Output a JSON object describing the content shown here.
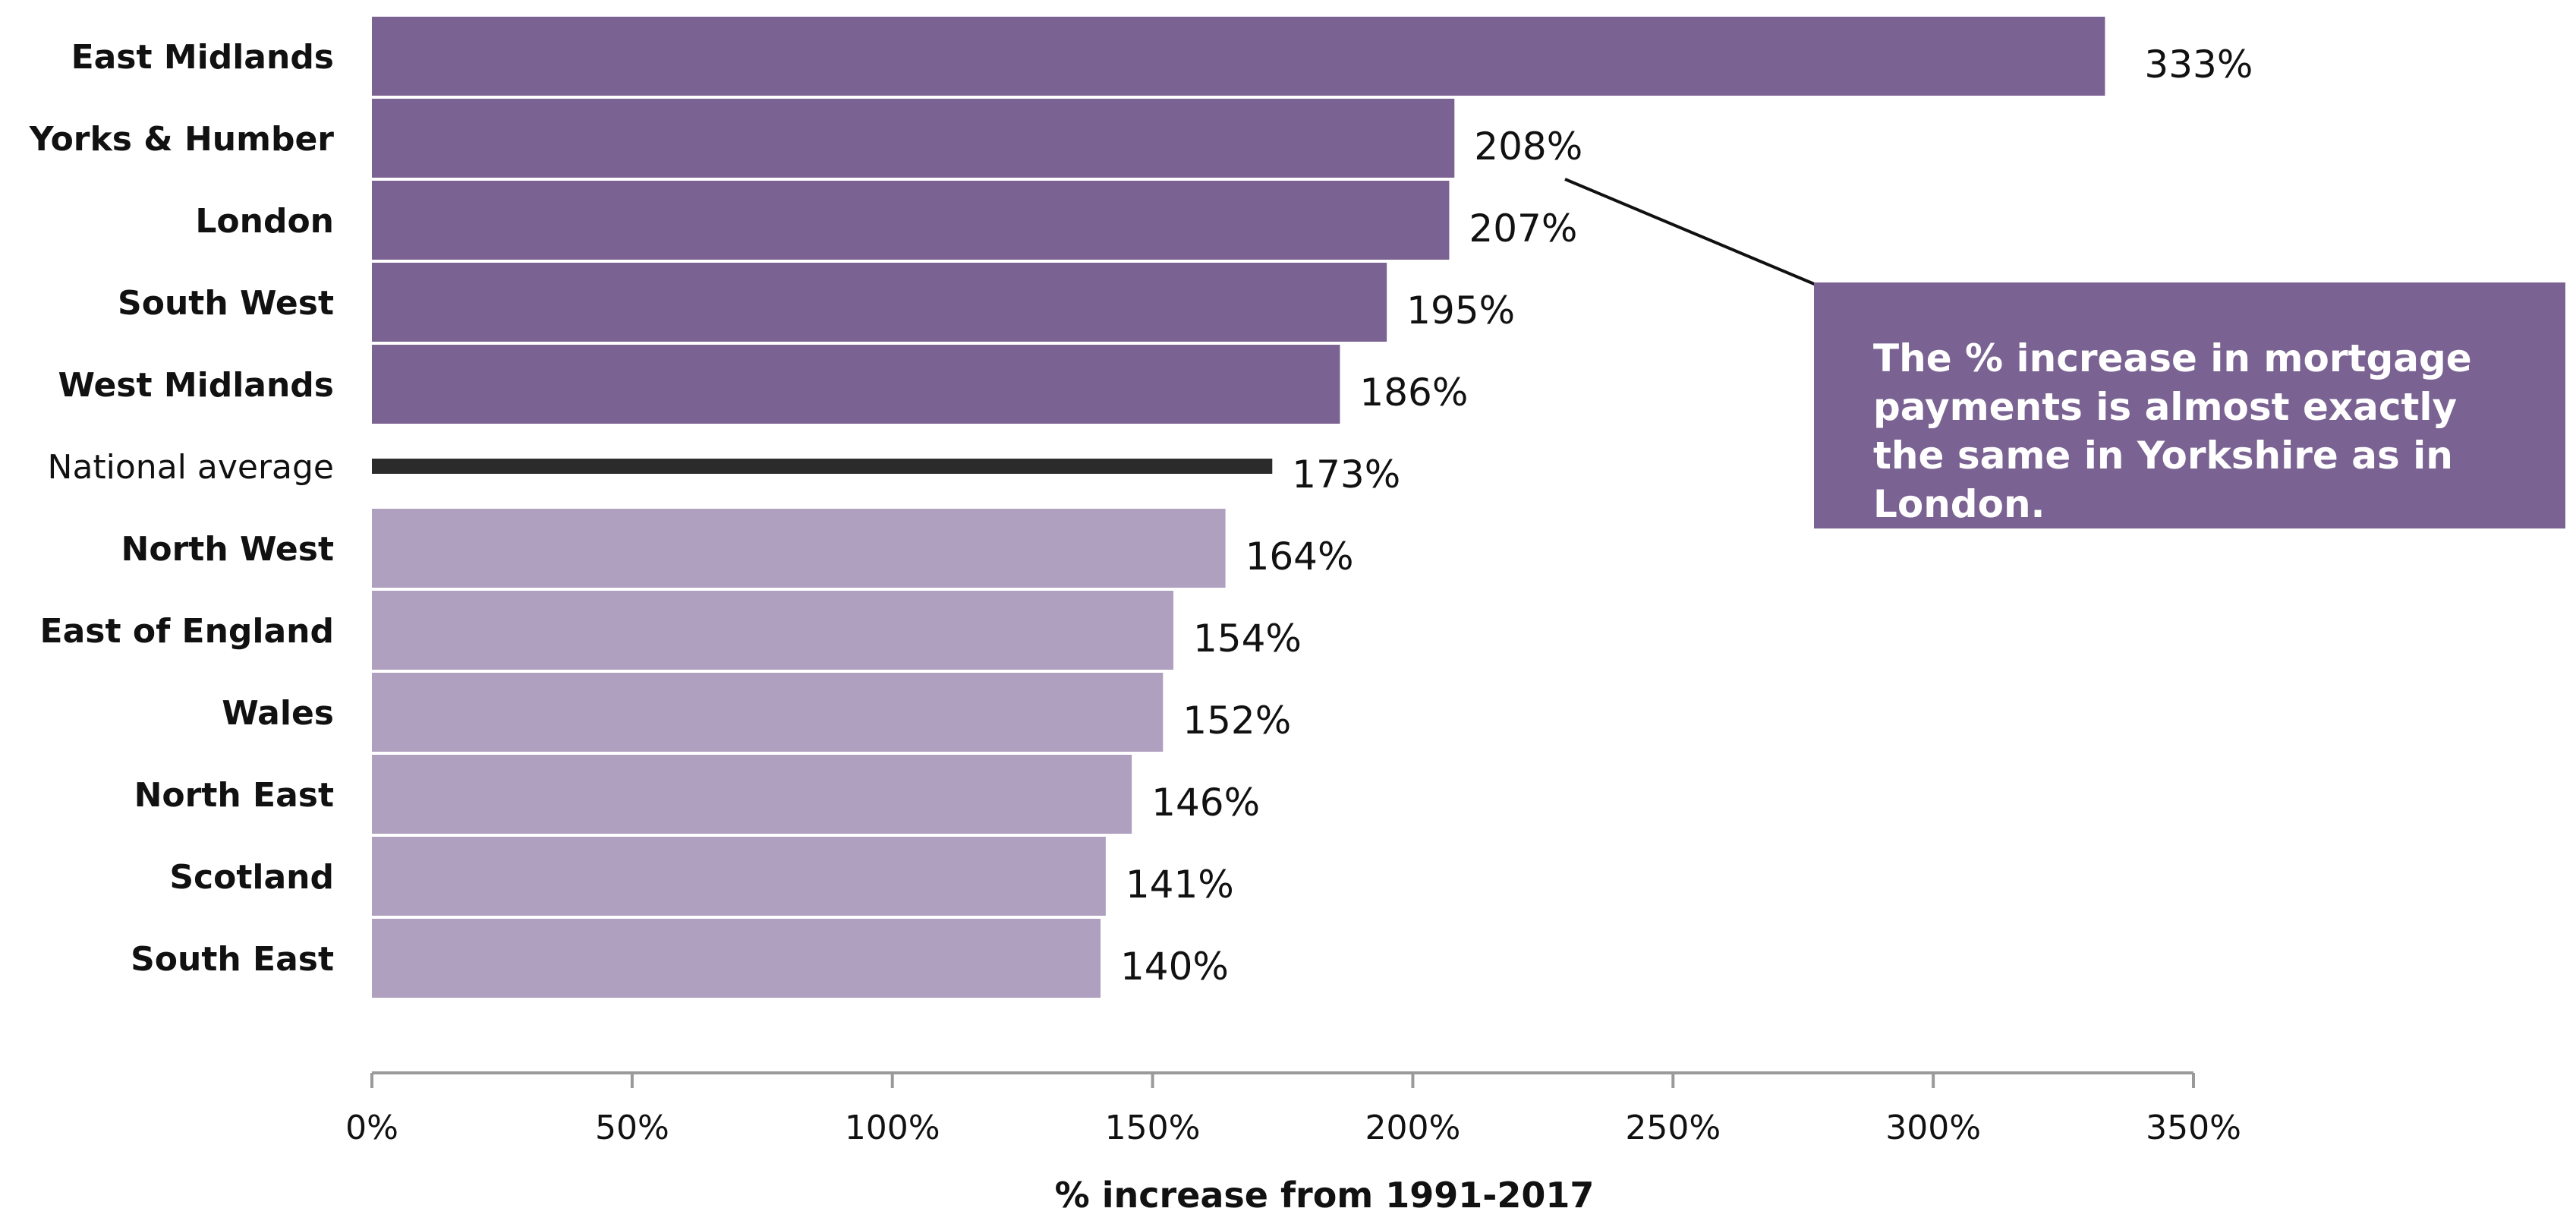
{
  "chart_data": {
    "type": "bar",
    "orientation": "horizontal",
    "categories": [
      "East Midlands",
      "Yorks & Humber",
      "London",
      "South West",
      "West Midlands",
      "National average",
      "North West",
      "East of England",
      "Wales",
      "North East",
      "Scotland",
      "South East"
    ],
    "values": [
      333,
      208,
      207,
      195,
      186,
      173,
      164,
      154,
      152,
      146,
      141,
      140
    ],
    "value_labels": [
      "333%",
      "208%",
      "207%",
      "195%",
      "186%",
      "173%",
      "164%",
      "154%",
      "152%",
      "146%",
      "141%",
      "140%"
    ],
    "xlabel": "% increase from 1991-2017",
    "ylabel": "",
    "xlim": [
      0,
      350
    ],
    "xticks": [
      0,
      50,
      100,
      150,
      200,
      250,
      300,
      350
    ],
    "xtick_labels": [
      "0%",
      "50%",
      "100%",
      "150%",
      "200%",
      "250%",
      "300%",
      "350%"
    ],
    "grid": false,
    "legend": "none",
    "highlight_category": "National average",
    "colors": {
      "above_average": "#7a6292",
      "below_average": "#afa0bf",
      "average": "#2b2b2b",
      "axis": "#9a9a9a",
      "text": "#111111"
    }
  },
  "annotation": {
    "text": "The % increase in mortgage payments is almost exactly the same in Yorkshire as in London.",
    "points_to": "Yorks & Humber",
    "background": "#7a6292",
    "text_color": "#ffffff"
  }
}
